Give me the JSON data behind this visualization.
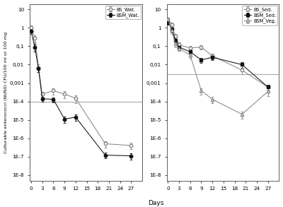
{
  "left": {
    "series": [
      {
        "label": "BS_Wat.",
        "x": [
          0,
          1,
          2,
          3,
          6,
          9,
          12,
          20,
          27
        ],
        "y": [
          1.0,
          0.28,
          0.007,
          0.00025,
          0.00038,
          0.00025,
          0.00015,
          5e-07,
          4e-07
        ],
        "yerr": [
          0.3,
          0.12,
          0.003,
          9e-05,
          0.00015,
          0.0001,
          7e-05,
          2e-07,
          1.5e-07
        ],
        "color": "#888888",
        "marker": "o",
        "filled": false
      },
      {
        "label": "BSM_Wat.",
        "x": [
          0,
          1,
          2,
          3,
          6,
          9,
          12,
          20,
          27
        ],
        "y": [
          0.65,
          0.09,
          0.006,
          0.00014,
          0.00013,
          1.1e-05,
          1.4e-05,
          1.2e-07,
          1.1e-07
        ],
        "yerr": [
          0.2,
          0.04,
          0.002,
          4e-05,
          4e-05,
          4e-06,
          5e-06,
          4e-08,
          4e-08
        ],
        "color": "#111111",
        "marker": "o",
        "filled": true
      }
    ],
    "hline_y": 0.0001,
    "ylim": [
      5e-09,
      20
    ],
    "xlim": [
      -0.3,
      30
    ],
    "xticks": [
      0,
      3,
      6,
      9,
      12,
      15,
      18,
      21,
      24,
      27
    ],
    "ytick_vals": [
      1e-08,
      1e-07,
      1e-06,
      1e-05,
      0.0001,
      0.001,
      0.01,
      0.1,
      1,
      10
    ],
    "ytick_labels": [
      "1E-8",
      "1E-7",
      "1E-6",
      "1E-5",
      "1E-4",
      "0,001",
      "0,01",
      "0,1",
      "1",
      "10"
    ]
  },
  "right": {
    "series": [
      {
        "label": "BS_Sed.",
        "x": [
          0,
          1,
          2,
          3,
          6,
          9,
          12,
          20,
          27
        ],
        "y": [
          3.0,
          1.5,
          0.35,
          0.12,
          0.08,
          0.09,
          0.03,
          0.005,
          0.0006
        ],
        "yerr": [
          0.6,
          0.5,
          0.1,
          0.04,
          0.025,
          0.025,
          0.01,
          0.002,
          0.0002
        ],
        "color": "#888888",
        "marker": "o",
        "filled": false
      },
      {
        "label": "BSM_Sed.",
        "x": [
          0,
          1,
          2,
          3,
          6,
          9,
          12,
          20,
          27
        ],
        "y": [
          2.0,
          0.9,
          0.22,
          0.09,
          0.05,
          0.018,
          0.025,
          0.01,
          0.0006
        ],
        "yerr": [
          0.5,
          0.35,
          0.07,
          0.03,
          0.015,
          0.005,
          0.008,
          0.004,
          0.0002
        ],
        "color": "#111111",
        "marker": "s",
        "filled": true
      },
      {
        "label": "BSM_Veg.",
        "x": [
          0,
          1,
          2,
          3,
          6,
          9,
          12,
          20,
          27
        ],
        "y": [
          3.0,
          0.7,
          0.14,
          0.075,
          0.033,
          0.00038,
          0.00013,
          2e-05,
          0.00035
        ],
        "yerr": [
          0.5,
          0.25,
          0.05,
          0.02,
          0.012,
          0.00015,
          5e-05,
          8e-06,
          0.00015
        ],
        "color": "#888888",
        "marker": "^",
        "filled": false
      }
    ],
    "hline_y": 0.003,
    "ylim": [
      5e-09,
      20
    ],
    "xlim": [
      -0.3,
      30
    ],
    "xticks": [
      0,
      3,
      6,
      9,
      12,
      15,
      18,
      21,
      24,
      27
    ],
    "ytick_vals": [
      1e-08,
      1e-07,
      1e-06,
      1e-05,
      0.0001,
      0.001,
      0.01,
      0.1,
      1,
      10
    ],
    "ytick_labels": [
      "1E-8",
      "1E-7",
      "1E-6",
      "1E-5",
      "1E-4",
      "0,001",
      "0,01",
      "0,1",
      "1",
      "10"
    ]
  },
  "ylabel": "Culturable enterococci (Nt/N0) CFU/100 ml or 100 mg",
  "xlabel": "Days",
  "bg_color": "#ffffff",
  "hline_color": "#aaaaaa"
}
